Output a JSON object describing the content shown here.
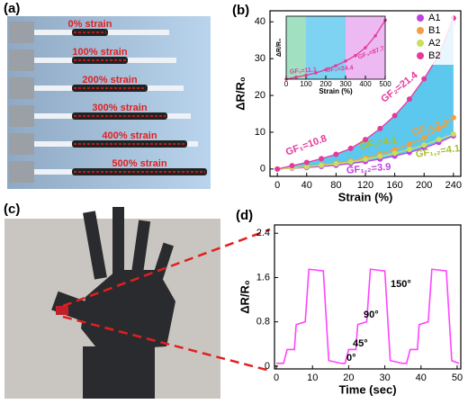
{
  "chart_data": [
    {
      "type": "line",
      "panel": "(b)",
      "xlabel": "Strain (%)",
      "ylabel": "ΔR/R₀",
      "x": [
        0,
        20,
        40,
        60,
        80,
        100,
        120,
        140,
        160,
        180,
        200,
        220,
        240
      ],
      "xlim": [
        -10,
        250
      ],
      "ylim": [
        -2,
        43
      ],
      "xticks": [
        0,
        40,
        80,
        120,
        160,
        200,
        240
      ],
      "yticks": [
        0,
        10,
        20,
        30,
        40
      ],
      "fill": "#5cc8ee",
      "legend": "upper right",
      "series": [
        {
          "name": "A1",
          "color": "#c040e0",
          "values": [
            0,
            0.2,
            0.4,
            0.7,
            1,
            1.5,
            2,
            2.7,
            3.5,
            4.5,
            5.7,
            7.2,
            9
          ]
        },
        {
          "name": "B1",
          "color": "#f0a040",
          "values": [
            0,
            0.3,
            0.7,
            1.1,
            1.6,
            2.2,
            3,
            4,
            5.3,
            6.7,
            8.5,
            11,
            14
          ]
        },
        {
          "name": "A2",
          "color": "#c8e060",
          "values": [
            0,
            0.3,
            0.6,
            1,
            1.4,
            1.9,
            2.6,
            3.4,
            4.3,
            5.3,
            6.5,
            8,
            9.5
          ]
        },
        {
          "name": "B2",
          "color": "#e6399b",
          "values": [
            0,
            0.9,
            1.8,
            2.8,
            4,
            5.6,
            8,
            11,
            14.5,
            19,
            24.5,
            31,
            41
          ]
        }
      ],
      "annotations": [
        {
          "text": "GF₁=10.8",
          "color": "#e6399b"
        },
        {
          "text": "GF₂=21.4",
          "color": "#e6399b"
        },
        {
          "text": "GF₁=4.1",
          "color": "#a8c030"
        },
        {
          "text": "GF₂=7.2",
          "color": "#f0a040"
        },
        {
          "text": "GF₁,₂=3.9",
          "color": "#c040e0"
        },
        {
          "text": "GF₁,₂=4.1",
          "color": "#a8c030"
        }
      ]
    },
    {
      "type": "line",
      "inset": true,
      "xlabel": "Strain (%)",
      "ylabel": "ΔR/R₀",
      "x": [
        0,
        50,
        100,
        150,
        200,
        250,
        300,
        350,
        400,
        450,
        500
      ],
      "xlim": [
        0,
        500
      ],
      "ylim": [
        0,
        16
      ],
      "xticks": [
        0,
        100,
        200,
        300,
        400,
        500
      ],
      "regions": [
        {
          "from": 0,
          "to": 100,
          "color": "#8ad8b0"
        },
        {
          "from": 100,
          "to": 300,
          "color": "#5cc8ee"
        },
        {
          "from": 300,
          "to": 500,
          "color": "#e8a8f0"
        }
      ],
      "series": [
        {
          "color": "#e6399b",
          "values": [
            0,
            0.5,
            1,
            1.6,
            2.4,
            3.4,
            4.6,
            6,
            8,
            11,
            15
          ]
        }
      ],
      "annotations": [
        {
          "text": "GF₁=11.1",
          "color": "#e6399b"
        },
        {
          "text": "GF₂=24.4",
          "color": "#e6399b"
        },
        {
          "text": "GF₃=87.7",
          "color": "#e6399b"
        }
      ]
    },
    {
      "type": "line",
      "panel": "(d)",
      "xlabel": "Time (sec)",
      "ylabel": "ΔR/R₀",
      "x": [
        0,
        2,
        3,
        5,
        5.5,
        8,
        9,
        13,
        14.5,
        18,
        19,
        20,
        22,
        22.5,
        25,
        26,
        30,
        31.5,
        35,
        36,
        37,
        39,
        39.5,
        42,
        43,
        47,
        48.5,
        50.5
      ],
      "xlim": [
        -0.5,
        51
      ],
      "ylim": [
        -0.05,
        2.55
      ],
      "xticks": [
        0,
        10,
        20,
        30,
        40,
        50
      ],
      "yticks": [
        0,
        0.8,
        1.6,
        2.4
      ],
      "series": [
        {
          "color": "#ff44ff",
          "values": [
            0.05,
            0.05,
            0.3,
            0.3,
            0.75,
            0.8,
            1.75,
            1.72,
            0.1,
            0.05,
            0.05,
            0.3,
            0.3,
            0.75,
            0.8,
            1.75,
            1.72,
            0.1,
            0.05,
            0.05,
            0.3,
            0.3,
            0.75,
            0.8,
            1.75,
            1.72,
            0.1,
            0.05
          ]
        }
      ],
      "annotations": [
        {
          "text": "0°",
          "color": "#000000"
        },
        {
          "text": "45°",
          "color": "#000000"
        },
        {
          "text": "90°",
          "color": "#000000"
        },
        {
          "text": "150°",
          "color": "#000000"
        }
      ]
    }
  ],
  "photos": [
    {
      "panel": "(a)",
      "labels": [
        "0% strain",
        "100% strain",
        "200% strain",
        "300% strain",
        "400% strain",
        "500% strain"
      ]
    },
    {
      "panel": "(c)"
    }
  ]
}
